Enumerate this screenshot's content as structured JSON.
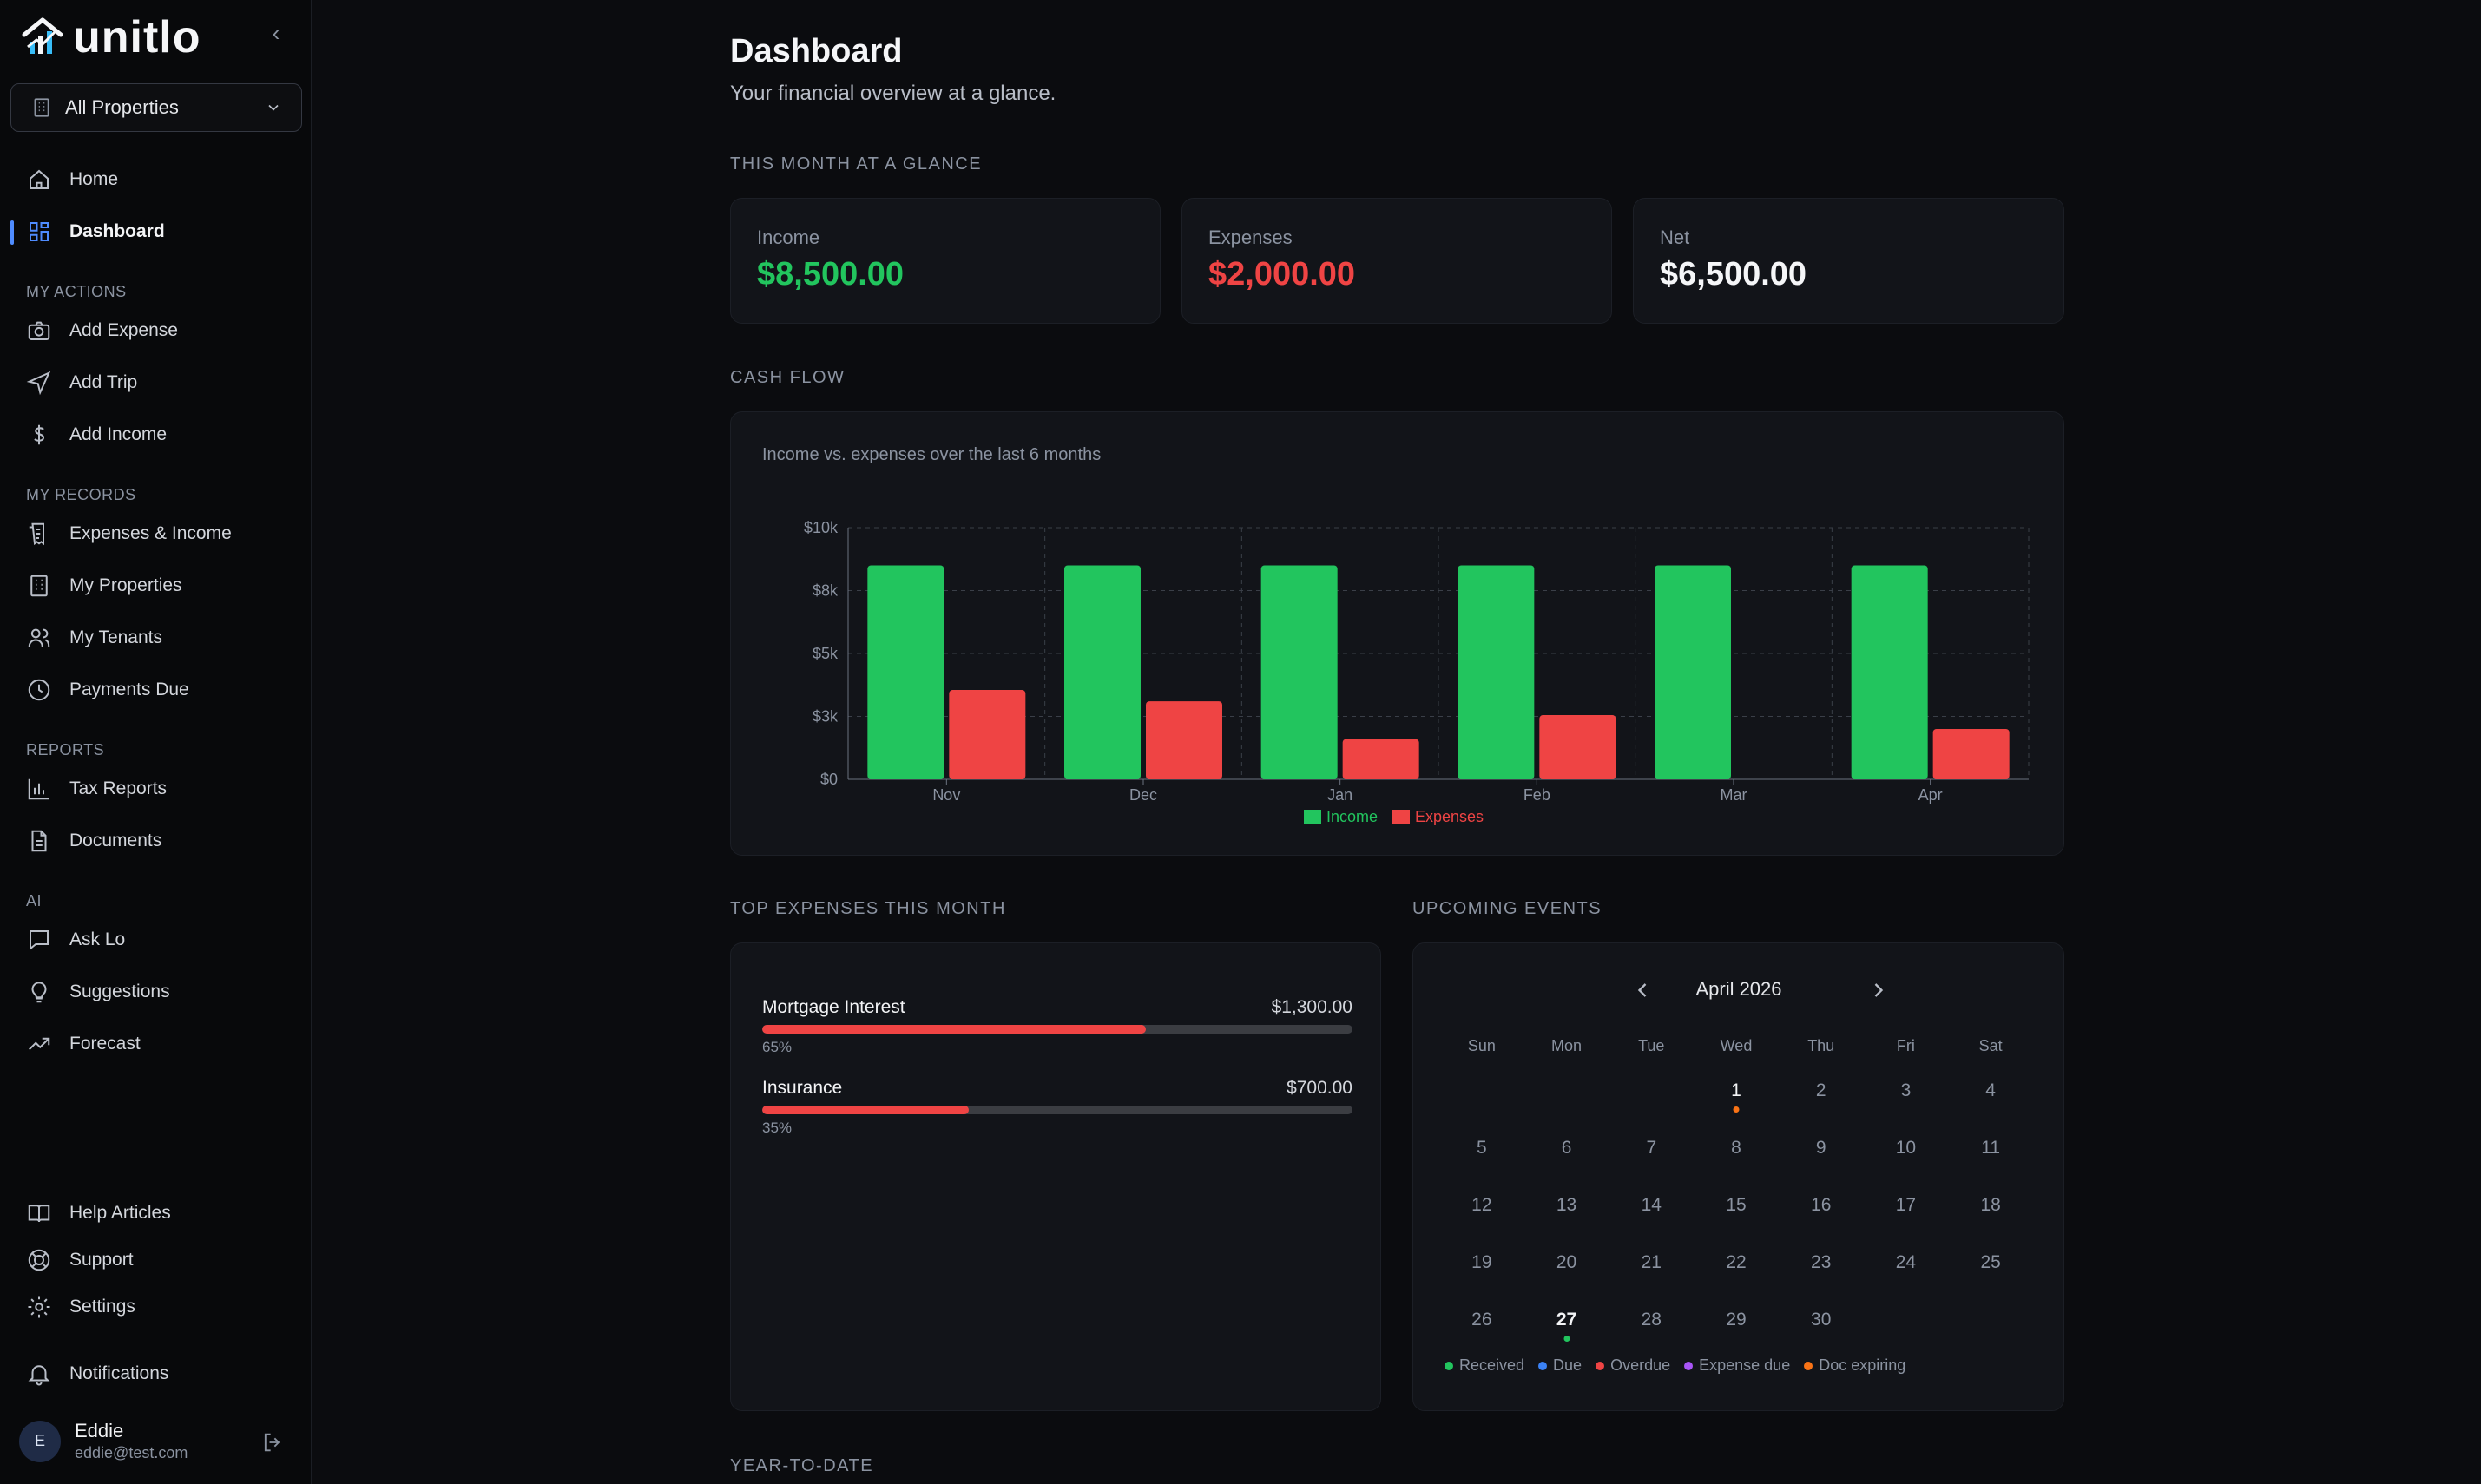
{
  "app": {
    "name": "unitlo"
  },
  "sidebar": {
    "property_select": "All Properties",
    "nav_top": [
      {
        "label": "Home"
      },
      {
        "label": "Dashboard"
      }
    ],
    "sections": {
      "my_actions": "MY ACTIONS",
      "my_records": "MY RECORDS",
      "reports": "REPORTS",
      "ai": "AI"
    },
    "actions": [
      {
        "label": "Add Expense"
      },
      {
        "label": "Add Trip"
      },
      {
        "label": "Add Income"
      }
    ],
    "records": [
      {
        "label": "Expenses & Income"
      },
      {
        "label": "My Properties"
      },
      {
        "label": "My Tenants"
      },
      {
        "label": "Payments Due"
      }
    ],
    "reports": [
      {
        "label": "Tax Reports"
      },
      {
        "label": "Documents"
      }
    ],
    "ai": [
      {
        "label": "Ask Lo"
      },
      {
        "label": "Suggestions"
      },
      {
        "label": "Forecast"
      }
    ],
    "bottom": [
      {
        "label": "Help Articles"
      },
      {
        "label": "Support"
      },
      {
        "label": "Settings"
      },
      {
        "label": "Notifications"
      }
    ],
    "user": {
      "initial": "E",
      "name": "Eddie",
      "email": "eddie@test.com"
    }
  },
  "page": {
    "title": "Dashboard",
    "subtitle": "Your financial overview at a glance."
  },
  "glance": {
    "label": "THIS MONTH AT A GLANCE",
    "income": {
      "label": "Income",
      "value": "$8,500.00"
    },
    "expenses": {
      "label": "Expenses",
      "value": "$2,000.00"
    },
    "net": {
      "label": "Net",
      "value": "$6,500.00"
    }
  },
  "colors": {
    "income": "#22c55e",
    "expenses": "#ef4444",
    "accent": "#4f8cff"
  },
  "cashflow": {
    "label": "CASH FLOW",
    "subtitle": "Income vs. expenses over the last 6 months"
  },
  "chart_data": {
    "type": "bar",
    "categories": [
      "Nov",
      "Dec",
      "Jan",
      "Feb",
      "Mar",
      "Apr"
    ],
    "series": [
      {
        "name": "Income",
        "color": "#22c55e",
        "values": [
          8500,
          8500,
          8500,
          8500,
          8500,
          8500
        ]
      },
      {
        "name": "Expenses",
        "color": "#ef4444",
        "values": [
          3550,
          3100,
          1600,
          2550,
          0,
          2000
        ]
      }
    ],
    "ylim": [
      0,
      10000
    ],
    "yticks": [
      0,
      2500,
      5000,
      7500,
      10000
    ],
    "ytick_labels": [
      "$0",
      "$3k",
      "$5k",
      "$8k",
      "$10k"
    ],
    "grid": true,
    "legend": "bottom-center"
  },
  "top_expenses": {
    "label": "TOP EXPENSES THIS MONTH",
    "items": [
      {
        "name": "Mortgage Interest",
        "amount": "$1,300.00",
        "pct": "65%",
        "fraction": 0.65
      },
      {
        "name": "Insurance",
        "amount": "$700.00",
        "pct": "35%",
        "fraction": 0.35
      }
    ]
  },
  "events": {
    "label": "UPCOMING EVENTS",
    "month": "April 2026",
    "dow": [
      "Sun",
      "Mon",
      "Tue",
      "Wed",
      "Thu",
      "Fri",
      "Sat"
    ],
    "first_weekday": 3,
    "days_in_month": 30,
    "today": 27,
    "event_days": [
      {
        "day": 1,
        "color": "#f97316"
      },
      {
        "day": 27,
        "color": "#22c55e"
      }
    ],
    "legend": [
      {
        "label": "Received",
        "color": "#22c55e"
      },
      {
        "label": "Due",
        "color": "#3b82f6"
      },
      {
        "label": "Overdue",
        "color": "#ef4444"
      },
      {
        "label": "Expense due",
        "color": "#a855f7"
      },
      {
        "label": "Doc expiring",
        "color": "#f97316"
      }
    ]
  },
  "ytd": {
    "label": "YEAR-TO-DATE"
  }
}
